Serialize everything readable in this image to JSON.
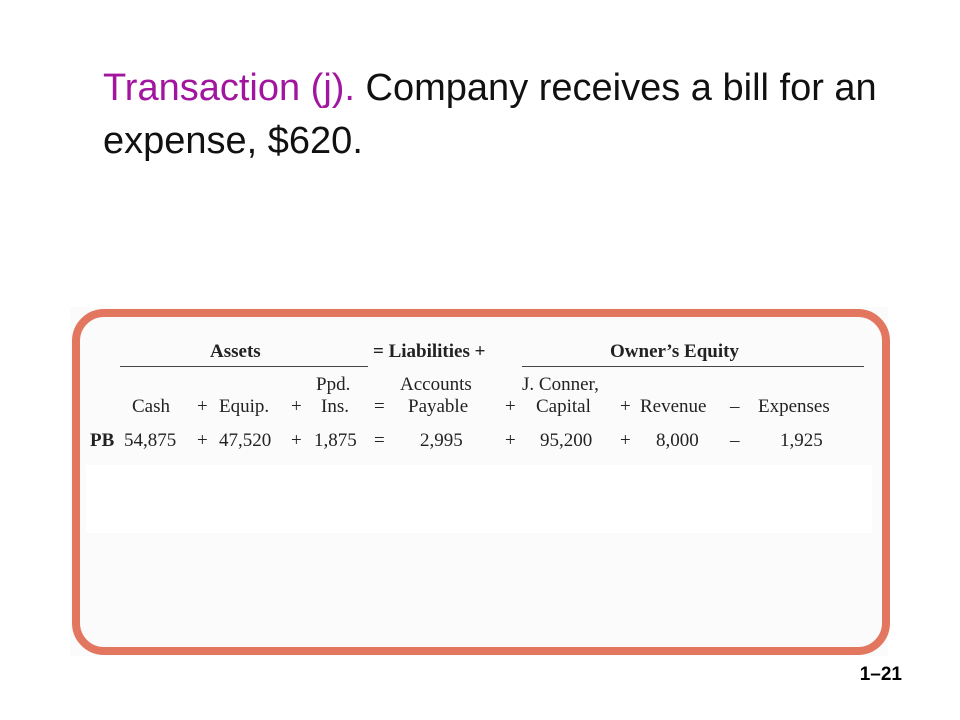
{
  "slide": {
    "title_highlight": "Transaction (j).",
    "title_rest": " Company receives a bill for an expense, $620.",
    "slide_number": "1–21",
    "accent_color": "#a2159f",
    "frame_color": "#e2765f"
  },
  "equation": {
    "group_headers": {
      "assets": "Assets",
      "eq_liabilities": "= Liabilities +",
      "owners_equity": "Owner’s Equity"
    },
    "columns": {
      "cash": "Cash",
      "plus1": "+",
      "equip": "Equip.",
      "plus2": "+",
      "ppd_ins_line1": "Ppd.",
      "ppd_ins_line2": "Ins.",
      "equals": "=",
      "ap_line1": "Accounts",
      "ap_line2": "Payable",
      "plus3": "+",
      "capital_line1": "J. Conner,",
      "capital_line2": "Capital",
      "plus4": "+",
      "revenue": "Revenue",
      "minus": "–",
      "expenses": "Expenses"
    },
    "pb_row": {
      "label": "PB",
      "cash": "54,875",
      "plus1": "+",
      "equip": "47,520",
      "plus2": "+",
      "ppd_ins": "1,875",
      "equals": "=",
      "accounts_payable": "2,995",
      "plus3": "+",
      "capital": "95,200",
      "plus4": "+",
      "revenue": "8,000",
      "minus": "–",
      "expenses": "1,925"
    }
  }
}
